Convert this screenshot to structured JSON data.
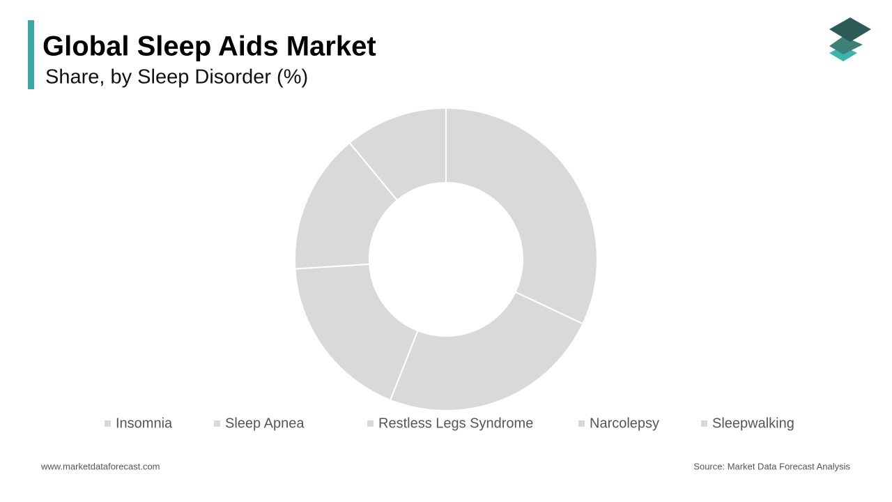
{
  "chart_data": {
    "type": "donut",
    "title": "Global Sleep Aids Market",
    "subtitle": "Share, by Sleep Disorder (%)",
    "categories": [
      "Insomnia",
      "Sleep Apnea",
      "Restless Legs Syndrome",
      "Narcolepsy",
      "Sleepwalking"
    ],
    "values": [
      32,
      24,
      18,
      15,
      11
    ],
    "colors": [
      "#d9d9d9",
      "#d9d9d9",
      "#d9d9d9",
      "#d9d9d9",
      "#d9d9d9"
    ],
    "legend": "bottom"
  },
  "footer": {
    "left": "www.marketdataforecast.com",
    "right": "Source: Market Data Forecast Analysis"
  }
}
